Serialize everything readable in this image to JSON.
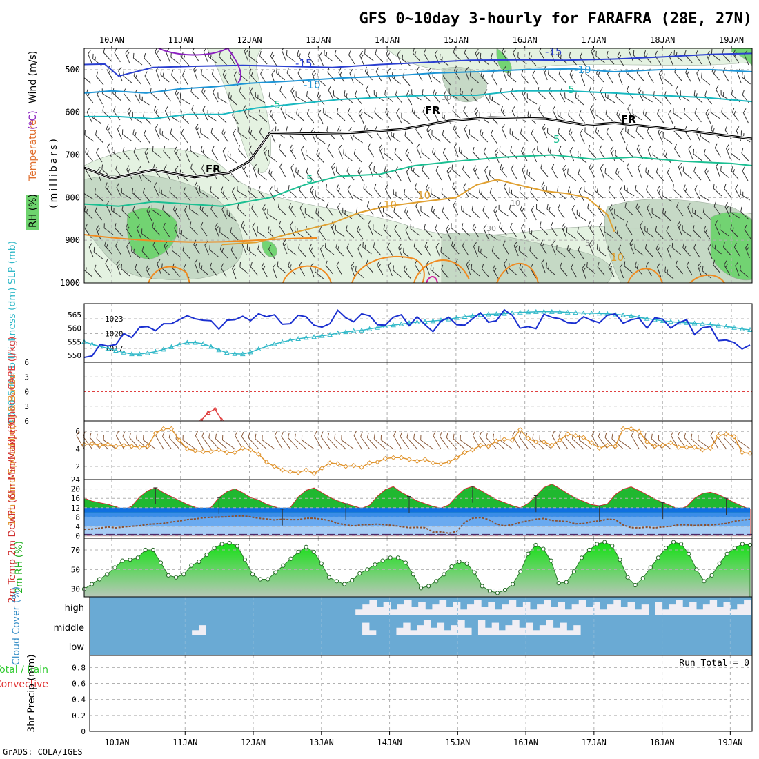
{
  "page": {
    "title": "GFS 0~10day 3-hourly for FARAFRA (28E, 27N)",
    "credit": "GrADS: COLA/IGES"
  },
  "colors": {
    "frame": "#000000",
    "grid": "#b0b0b0",
    "rh_light": "#e3f2e0",
    "rh_mid": "#c4d8c4",
    "rh_green": "#6ed36e",
    "temp_violet": "#8a1fbf",
    "temp_blue": "#2a3fd0",
    "temp_sky": "#1e95d6",
    "temp_cyan": "#18b8c0",
    "temp_teal": "#1bbf92",
    "temp_gold": "#e0a030",
    "temp_orange": "#f08a20",
    "freezing": "#000000",
    "slp": "#1a2fd0",
    "thickness": "#30b8c8",
    "lifted": "#e04040",
    "cape": "#cc66cc",
    "wind": "#e09530",
    "barb": "#8a5a3a",
    "temp_fill": "#20b830",
    "temp_max": "#d03030",
    "dewpt": "#8a5030",
    "dew_band1": "#1070e0",
    "dew_band2": "#3a8de8",
    "dew_band3": "#6aaaf0",
    "dew_band4": "#a8cdf5",
    "rh_fill_top": "#10e010",
    "rh_fill_bottom": "#b8c8b8",
    "cloud_bg": "#6aaad4",
    "cloud_fill": "#f0eef4",
    "precip_total": "#33cc33",
    "precip_conv": "#e03030"
  },
  "chart_data": [
    {
      "id": "upper_air",
      "type": "contour",
      "x": {
        "labels": [
          "10JAN",
          "11JAN",
          "12JAN",
          "13JAN",
          "14JAN",
          "15JAN",
          "16JAN",
          "17JAN",
          "18JAN",
          "19JAN"
        ],
        "start_day": 9.6,
        "end_day": 19.3
      },
      "ylabel_main": "(millibars)",
      "ylabel_parts": [
        "RH (%)",
        "Temperature",
        "(°C)",
        "Wind (m/s)"
      ],
      "yticks": [
        "500",
        "600",
        "700",
        "800",
        "900",
        "1000"
      ],
      "ylim": [
        450,
        1000
      ],
      "contour_labels": [
        "-15",
        "-15",
        "-10",
        "-10",
        "-5",
        "-5",
        "5",
        "5",
        "FR",
        "FR",
        "FR",
        "10",
        "10",
        "10",
        "30",
        "50",
        "10",
        "30"
      ],
      "isotherms": [
        {
          "label": "-15",
          "color": "#2a3fd0",
          "days": [
            9.6,
            9.9,
            10.1,
            10.6,
            11.2,
            11.9,
            12.5,
            13.2,
            13.9,
            14.6,
            15.2,
            15.9,
            16.6,
            17.3,
            18.0,
            18.7,
            19.3
          ],
          "p": [
            488,
            487,
            515,
            495,
            492,
            490,
            492,
            495,
            488,
            483,
            478,
            477,
            478,
            475,
            470,
            464,
            462
          ]
        },
        {
          "label": "-10",
          "color": "#1e95d6",
          "days": [
            9.6,
            10.0,
            10.5,
            11.0,
            11.5,
            12.0,
            12.6,
            13.3,
            14.0,
            14.7,
            15.3,
            16.0,
            16.7,
            17.3,
            18.0,
            18.7,
            19.3
          ],
          "p": [
            555,
            550,
            555,
            545,
            540,
            532,
            527,
            520,
            515,
            508,
            505,
            500,
            498,
            505,
            500,
            500,
            505
          ]
        },
        {
          "label": "-5",
          "color": "#18b8c0",
          "days": [
            9.6,
            10.1,
            10.6,
            11.1,
            11.6,
            12.1,
            12.7,
            13.3,
            13.9,
            14.6,
            15.3,
            15.9,
            16.6,
            17.3,
            17.9,
            18.6,
            19.3
          ],
          "p": [
            610,
            610,
            615,
            605,
            605,
            590,
            580,
            570,
            565,
            560,
            560,
            550,
            550,
            555,
            560,
            565,
            575
          ]
        },
        {
          "label": "5",
          "color": "#1bbf92",
          "days": [
            9.6,
            10.1,
            10.6,
            11.1,
            11.6,
            12.3,
            12.8,
            13.3,
            13.9,
            14.4,
            15.0,
            15.7,
            16.4,
            17.0,
            17.6,
            18.3,
            19.0,
            19.3
          ],
          "p": [
            815,
            820,
            810,
            815,
            820,
            800,
            770,
            750,
            745,
            725,
            715,
            705,
            700,
            710,
            705,
            715,
            720,
            725
          ]
        },
        {
          "label": "FR",
          "color": "#000000",
          "days": [
            9.6,
            10.0,
            10.6,
            11.2,
            11.7,
            12.0,
            12.3,
            12.9,
            13.5,
            14.2,
            14.9,
            15.5,
            16.3,
            16.9,
            17.3,
            17.9,
            18.6,
            19.3
          ],
          "p": [
            730,
            755,
            735,
            752,
            742,
            715,
            648,
            650,
            648,
            640,
            620,
            612,
            615,
            630,
            625,
            635,
            648,
            662
          ]
        },
        {
          "label": "10",
          "color": "#e0a030",
          "days": [
            11.6,
            12.1,
            12.7,
            13.2,
            13.6,
            14.0,
            14.5,
            15.0,
            15.3,
            15.6,
            15.9,
            16.3,
            16.6,
            16.9,
            17.2,
            17.3
          ],
          "p": [
            910,
            905,
            880,
            860,
            835,
            820,
            810,
            800,
            770,
            758,
            770,
            785,
            790,
            800,
            840,
            880
          ]
        }
      ],
      "rh_levels": [
        "10",
        "30",
        "50"
      ]
    },
    {
      "id": "slp_thickness",
      "type": "line",
      "ylabel": "1000-500mb thickness (dm) SLP (mb)",
      "yticks_left": [
        "565",
        "560",
        "555",
        "550"
      ],
      "yticks_right": [
        "1023",
        "1020",
        "1017"
      ],
      "series": [
        {
          "name": "SLP",
          "unit": "mb",
          "color": "#1a2fd0",
          "values": [
            1015.2,
            1015.5,
            1017.8,
            1017.5,
            1017.8,
            1020.0,
            1019.2,
            1021.3,
            1021.4,
            1020.6,
            1022.0,
            1022.0,
            1022.8,
            1023.6,
            1023.0,
            1022.7,
            1022.6,
            1020.9,
            1022.7,
            1022.8,
            1023.5,
            1022.6,
            1024.0,
            1023.4,
            1023.8,
            1021.9,
            1022.0,
            1023.7,
            1023.4,
            1021.7,
            1021.3,
            1022.0,
            1024.7,
            1023.2,
            1022.4,
            1024.0,
            1023.6,
            1021.8,
            1021.7,
            1023.3,
            1023.8,
            1021.6,
            1023.4,
            1021.8,
            1020.4,
            1022.5,
            1023.3,
            1021.8,
            1021.7,
            1023.0,
            1024.2,
            1022.3,
            1022.6,
            1024.8,
            1023.7,
            1021.1,
            1021.4,
            1021.0,
            1023.9,
            1023.3,
            1023.0,
            1022.2,
            1022.1,
            1023.4,
            1022.7,
            1022.2,
            1023.7,
            1024.0,
            1022.1,
            1022.8,
            1023.1,
            1021.1,
            1023.2,
            1022.9,
            1021.1,
            1022.2,
            1022.8,
            1019.8,
            1021.2,
            1021.4,
            1018.6,
            1018.7,
            1018.2,
            1016.9,
            1017.7
          ]
        },
        {
          "name": "Thickness",
          "unit": "dm",
          "color": "#30b8c8",
          "values": [
            555.0,
            554.1,
            553.3,
            552.6,
            551.8,
            551.1,
            550.5,
            550.5,
            550.9,
            551.4,
            552.2,
            553.1,
            554.0,
            554.7,
            554.7,
            554.3,
            553.2,
            552.0,
            551.0,
            550.6,
            550.5,
            551.2,
            552.3,
            553.3,
            554.2,
            554.9,
            555.6,
            556.1,
            556.5,
            556.8,
            557.2,
            557.6,
            558.2,
            558.6,
            559.0,
            559.2,
            559.7,
            560.2,
            560.7,
            561.1,
            561.5,
            561.9,
            562.2,
            562.4,
            562.6,
            562.9,
            563.3,
            563.8,
            564.2,
            564.5,
            564.9,
            565.1,
            565.2,
            565.3,
            565.6,
            565.8,
            565.9,
            566.0,
            566.1,
            566.0,
            566.0,
            565.8,
            565.7,
            565.5,
            565.5,
            565.4,
            565.3,
            565.1,
            564.8,
            564.5,
            564.0,
            563.5,
            563.1,
            562.7,
            562.4,
            562.1,
            562.0,
            561.8,
            561.6,
            561.3,
            561.0,
            560.6,
            560.2,
            559.7,
            559.4
          ]
        }
      ]
    },
    {
      "id": "stability",
      "type": "line",
      "ylabel": "Lifted Index  CAPE (J/kg)",
      "yticks": [
        "6",
        "3",
        "0",
        "3",
        "6"
      ],
      "series": [
        {
          "name": "Lifted Index",
          "color": "#e04040",
          "points": [
            [
              11.3,
              5.9
            ],
            [
              11.4,
              4.3
            ],
            [
              11.5,
              3.6
            ],
            [
              11.6,
              5.9
            ]
          ]
        }
      ]
    },
    {
      "id": "wind10m",
      "type": "line",
      "ylabel": "10m Wind Speed (m/s) & Barbs",
      "yticks": [
        "6",
        "4",
        "2"
      ],
      "series": [
        {
          "name": "10m Wind Speed",
          "unit": "m/s",
          "color": "#e09530",
          "values": [
            4.5,
            4.6,
            4.4,
            4.5,
            4.3,
            4.4,
            4.3,
            4.2,
            4.3,
            5.8,
            6.3,
            6.3,
            5.0,
            4.0,
            3.8,
            3.7,
            3.7,
            3.9,
            3.6,
            3.6,
            4.1,
            3.9,
            3.4,
            2.5,
            2.0,
            1.6,
            1.4,
            1.3,
            1.6,
            1.2,
            1.8,
            2.4,
            2.3,
            2.0,
            2.1,
            1.9,
            2.4,
            2.5,
            2.9,
            3.0,
            3.0,
            2.8,
            2.6,
            2.8,
            2.4,
            2.3,
            2.5,
            3.0,
            3.6,
            3.9,
            4.4,
            4.3,
            4.9,
            5.1,
            5.0,
            6.2,
            5.2,
            4.8,
            4.8,
            4.4,
            5.0,
            5.7,
            5.5,
            5.3,
            4.7,
            4.1,
            4.4,
            4.3,
            6.3,
            6.3,
            6.0,
            4.8,
            4.3,
            4.4,
            4.7,
            4.2,
            4.2,
            4.2,
            3.9,
            4.1,
            5.5,
            5.7,
            5.4,
            3.6,
            3.5
          ]
        }
      ]
    },
    {
      "id": "temp2m",
      "type": "area",
      "ylabel": "2m Temp 2m DewPt (6hr Min/Max) (°C)",
      "yticks": [
        "24",
        "20",
        "16",
        "12",
        "8",
        "4",
        "0"
      ],
      "series": [
        {
          "name": "2m Temp",
          "unit": "°C",
          "color": "#20b830",
          "values": [
            16.1,
            14.8,
            14.1,
            13.4,
            12.4,
            11.3,
            12.6,
            16.6,
            19.2,
            20.5,
            18.4,
            16.7,
            15.1,
            13.4,
            12.2,
            11.4,
            12.1,
            16.3,
            18.8,
            20.1,
            18.4,
            16.3,
            15.3,
            13.5,
            12.4,
            11.4,
            12.1,
            16.6,
            19.4,
            20.4,
            18.4,
            16.4,
            14.9,
            13.7,
            12.7,
            11.7,
            13.1,
            16.9,
            19.7,
            21.0,
            18.6,
            16.8,
            14.9,
            13.7,
            12.6,
            11.8,
            13.2,
            16.9,
            20.0,
            21.1,
            19.4,
            17.4,
            15.5,
            14.2,
            12.9,
            11.9,
            13.8,
            17.1,
            20.6,
            22.1,
            20.2,
            18.0,
            16.1,
            14.7,
            13.3,
            12.8,
            13.6,
            17.6,
            19.9,
            20.9,
            19.3,
            17.5,
            15.7,
            14.2,
            12.9,
            11.3,
            12.5,
            16.0,
            18.1,
            18.6,
            17.6,
            16.0,
            14.2,
            12.7,
            11.3
          ]
        },
        {
          "name": "2m DewPt",
          "unit": "°C",
          "color": "#8a5030",
          "values": [
            2.8,
            2.9,
            3.3,
            3.8,
            3.4,
            3.8,
            4.1,
            4.3,
            4.9,
            5.1,
            5.3,
            5.9,
            6.3,
            6.9,
            7.2,
            7.7,
            7.9,
            8.0,
            8.1,
            8.4,
            8.5,
            8.1,
            7.5,
            7.2,
            6.8,
            7.1,
            6.9,
            6.9,
            7.5,
            7.5,
            7.1,
            6.5,
            5.3,
            4.7,
            4.2,
            4.7,
            4.8,
            5.0,
            4.7,
            4.4,
            3.9,
            3.5,
            3.6,
            3.5,
            1.6,
            1.7,
            1.1,
            1.9,
            5.7,
            7.5,
            7.8,
            7.0,
            5.0,
            4.3,
            4.7,
            5.7,
            6.4,
            7.1,
            7.4,
            6.6,
            6.3,
            6.1,
            5.1,
            5.3,
            6.0,
            6.4,
            7.1,
            6.9,
            4.6,
            3.5,
            3.4,
            3.7,
            3.4,
            3.8,
            4.1,
            4.7,
            4.7,
            4.4,
            4.6,
            4.6,
            4.9,
            5.3,
            6.2,
            6.7,
            7.0
          ]
        }
      ]
    },
    {
      "id": "rh2m",
      "type": "area",
      "ylabel": "2m RH (%)",
      "yticks": [
        "70",
        "50",
        "30"
      ],
      "series": [
        {
          "name": "2m RH",
          "unit": "%",
          "color": "#10e010",
          "values": [
            30,
            35,
            40,
            45,
            52,
            59,
            60,
            62,
            70,
            70,
            57,
            44,
            42,
            45,
            54,
            58,
            65,
            72,
            76,
            77,
            74,
            60,
            45,
            40,
            40,
            47,
            54,
            61,
            68,
            73,
            68,
            56,
            42,
            38,
            35,
            39,
            46,
            50,
            55,
            59,
            62,
            62,
            57,
            45,
            31,
            33,
            38,
            45,
            53,
            58,
            56,
            47,
            33,
            28,
            26,
            29,
            35,
            48,
            66,
            75,
            71,
            59,
            36,
            37,
            48,
            62,
            70,
            76,
            78,
            74,
            60,
            42,
            34,
            41,
            52,
            62,
            72,
            78,
            76,
            66,
            50,
            38,
            44,
            56,
            66,
            72,
            76,
            75
          ]
        }
      ]
    },
    {
      "id": "cloud",
      "type": "bar",
      "ylabel": "Cloud Cover (%)",
      "levels": [
        "high",
        "middle",
        "low"
      ],
      "series": [
        {
          "name": "high",
          "segments": [
            [
              13.5,
              17.8
            ],
            [
              17.9,
              19.3
            ]
          ]
        },
        {
          "name": "middle",
          "segments": [
            [
              11.1,
              11.3
            ],
            [
              13.6,
              13.8
            ],
            [
              14.1,
              15.2
            ],
            [
              15.3,
              16.8
            ]
          ]
        },
        {
          "name": "low",
          "segments": []
        }
      ]
    },
    {
      "id": "precip",
      "type": "bar",
      "ylabel": "3hr Precip (mm)",
      "legend": [
        "Total / Rain",
        "Convective"
      ],
      "run_total": "Run Total = 0",
      "yticks": [
        "0.8",
        "0.6",
        "0.4",
        "0.2",
        "0"
      ],
      "values": []
    }
  ]
}
